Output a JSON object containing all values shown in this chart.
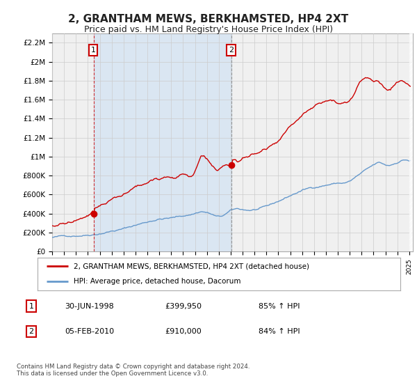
{
  "title": "2, GRANTHAM MEWS, BERKHAMSTED, HP4 2XT",
  "subtitle": "Price paid vs. HM Land Registry's House Price Index (HPI)",
  "title_fontsize": 11,
  "subtitle_fontsize": 9,
  "legend_line1": "2, GRANTHAM MEWS, BERKHAMSTED, HP4 2XT (detached house)",
  "legend_line2": "HPI: Average price, detached house, Dacorum",
  "annotation1_date": "30-JUN-1998",
  "annotation1_price": "£399,950",
  "annotation1_hpi": "85% ↑ HPI",
  "annotation2_date": "05-FEB-2010",
  "annotation2_price": "£910,000",
  "annotation2_hpi": "84% ↑ HPI",
  "footer": "Contains HM Land Registry data © Crown copyright and database right 2024.\nThis data is licensed under the Open Government Licence v3.0.",
  "red_color": "#cc0000",
  "blue_color": "#6699cc",
  "blue_fill": "#ddeeff",
  "grid_color": "#cccccc",
  "bg_color": "#ffffff",
  "plot_bg_color": "#f0f0f0",
  "ylim": [
    0,
    2300000
  ],
  "yticks": [
    0,
    200000,
    400000,
    600000,
    800000,
    1000000,
    1200000,
    1400000,
    1600000,
    1800000,
    2000000,
    2200000
  ],
  "ytick_labels": [
    "£0",
    "£200K",
    "£400K",
    "£600K",
    "£800K",
    "£1M",
    "£1.2M",
    "£1.4M",
    "£1.6M",
    "£1.8M",
    "£2M",
    "£2.2M"
  ],
  "sale1_x": 1998.5,
  "sale1_y": 399950,
  "sale2_x": 2010.08,
  "sale2_y": 910000,
  "xlim_left": 1995.0,
  "xlim_right": 2025.3
}
